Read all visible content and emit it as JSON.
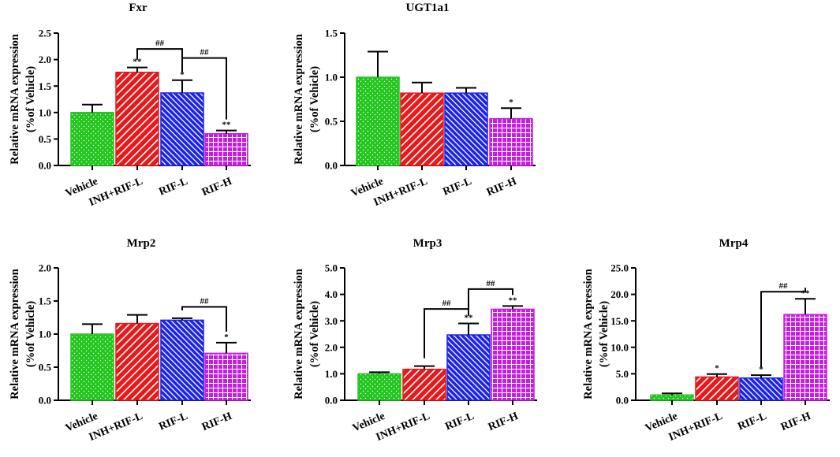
{
  "chart_data": [
    {
      "type": "bar",
      "title": "Fxr",
      "ylabel": "Relative mRNA expression (%of Vehicle)",
      "ylabel_lines": [
        "Relative mRNA expression",
        "(%of Vehicle)"
      ],
      "categories": [
        "Vehicle",
        "INH+RIF-L",
        "RIF-L",
        "RIF-H"
      ],
      "values": [
        1.0,
        1.76,
        1.37,
        0.6
      ],
      "errors": [
        0.15,
        0.09,
        0.24,
        0.06
      ],
      "ylim": [
        0,
        2.5
      ],
      "ticks": [
        0.0,
        0.5,
        1.0,
        1.5,
        2.0,
        2.5
      ],
      "tick_labels": [
        "0.0",
        "0.5",
        "1.0",
        "1.5",
        "2.0",
        "2.5"
      ],
      "significance": [
        "",
        "**",
        "*",
        "**"
      ],
      "comparisons": [
        {
          "from": 1,
          "to": 2,
          "label": "##",
          "level": 2.2
        },
        {
          "from": 2,
          "to": 3,
          "label": "##",
          "level": 2.03
        }
      ]
    },
    {
      "type": "bar",
      "title": "UGT1a1",
      "ylabel": "Relative mRNA expression (%of Vehicle)",
      "ylabel_lines": [
        "Relative mRNA expression",
        "(%of Vehicle)"
      ],
      "categories": [
        "Vehicle",
        "INH+RIF-L",
        "RIF-L",
        "RIF-H"
      ],
      "values": [
        1.0,
        0.82,
        0.82,
        0.53
      ],
      "errors": [
        0.29,
        0.12,
        0.06,
        0.12
      ],
      "ylim": [
        0,
        1.5
      ],
      "ticks": [
        0.0,
        0.5,
        1.0,
        1.5
      ],
      "tick_labels": [
        "0.0",
        "0.5",
        "1.0",
        "1.5"
      ],
      "significance": [
        "",
        "",
        "",
        "*"
      ],
      "comparisons": []
    },
    {
      "type": "bar",
      "title": "Mrp2",
      "ylabel": "Relative mRNA expression (%of Vehicle)",
      "ylabel_lines": [
        "Relative mRNA expression",
        "(%of Vehicle)"
      ],
      "categories": [
        "Vehicle",
        "INH+RIF-L",
        "RIF-L",
        "RIF-H"
      ],
      "values": [
        1.0,
        1.16,
        1.21,
        0.71
      ],
      "errors": [
        0.15,
        0.13,
        0.03,
        0.16
      ],
      "ylim": [
        0,
        2.0
      ],
      "ticks": [
        0.0,
        0.5,
        1.0,
        1.5,
        2.0
      ],
      "tick_labels": [
        "0.0",
        "0.5",
        "1.0",
        "1.5",
        "2.0"
      ],
      "significance": [
        "",
        "",
        "",
        "*"
      ],
      "comparisons": [
        {
          "from": 2,
          "to": 3,
          "label": "##",
          "level": 1.41
        }
      ]
    },
    {
      "type": "bar",
      "title": "Mrp3",
      "ylabel": "Relative mRNA expression (%of Vehicle)",
      "ylabel_lines": [
        "Relative mRNA expression",
        "(%of Vehicle)"
      ],
      "categories": [
        "Vehicle",
        "INH+RIF-L",
        "RIF-L",
        "RIF-H"
      ],
      "values": [
        1.0,
        1.17,
        2.47,
        3.44
      ],
      "errors": [
        0.06,
        0.12,
        0.43,
        0.12
      ],
      "ylim": [
        0,
        5.0
      ],
      "ticks": [
        0.0,
        1.0,
        2.0,
        3.0,
        4.0,
        5.0
      ],
      "tick_labels": [
        "0.0",
        "1.0",
        "2.0",
        "3.0",
        "4.0",
        "5.0"
      ],
      "significance": [
        "",
        "",
        "**",
        "**"
      ],
      "comparisons": [
        {
          "from": 1,
          "to": 2,
          "label": "##",
          "level": 3.45
        },
        {
          "from": 2,
          "to": 3,
          "label": "##",
          "level": 4.2
        }
      ]
    },
    {
      "type": "bar",
      "title": "Mrp4",
      "ylabel": "Relative mRNA expression (%of Vehicle)",
      "ylabel_lines": [
        "Relative mRNA expression",
        "(%of Vehicle)"
      ],
      "categories": [
        "Vehicle",
        "INH+RIF-L",
        "RIF-L",
        "RIF-H"
      ],
      "values": [
        1.0,
        4.4,
        4.2,
        16.2
      ],
      "errors": [
        0.3,
        0.55,
        0.55,
        2.95
      ],
      "ylim": [
        0,
        25.0
      ],
      "ticks": [
        0.0,
        5.0,
        10.0,
        15.0,
        20.0,
        25.0
      ],
      "tick_labels": [
        "0.0",
        "5.0",
        "10.0",
        "15.0",
        "20.0",
        "25.0"
      ],
      "significance": [
        "",
        "*",
        "*",
        "**"
      ],
      "comparisons": [
        {
          "from": 2,
          "to": 3,
          "label": "##",
          "level": 20.5
        }
      ]
    }
  ],
  "colors": {
    "bars": [
      "#23c61e",
      "#e41a1c",
      "#1c22e6",
      "#c51ee0"
    ],
    "axis": "#000000"
  }
}
